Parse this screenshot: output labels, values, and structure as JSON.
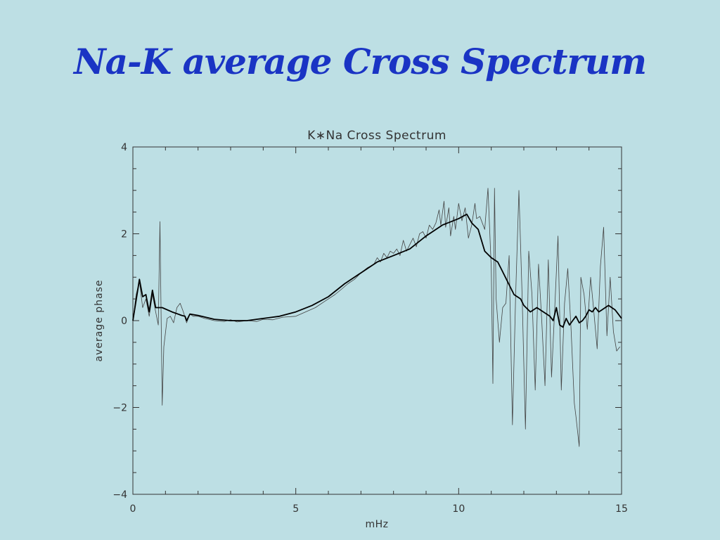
{
  "slide": {
    "title": "Na-K average Cross Spectrum"
  },
  "chart_data": {
    "type": "line",
    "title": "K∗Na Cross Spectrum",
    "xlabel": "mHz",
    "ylabel": "average phase",
    "xlim": [
      0,
      15
    ],
    "ylim": [
      -4,
      4
    ],
    "xticks": [
      "0",
      "5",
      "10",
      "15"
    ],
    "yticks": [
      "−4",
      "−2",
      "0",
      "2",
      "4"
    ],
    "grid": false,
    "legend": "none",
    "series": [
      {
        "style": "thin",
        "color": "#444444",
        "points": [
          [
            0,
            0
          ],
          [
            0.1,
            0.6
          ],
          [
            0.2,
            0.9
          ],
          [
            0.3,
            0.3
          ],
          [
            0.4,
            0.5
          ],
          [
            0.5,
            0.1
          ],
          [
            0.6,
            0.6
          ],
          [
            0.7,
            0.2
          ],
          [
            0.78,
            -0.1
          ],
          [
            0.83,
            2.28
          ],
          [
            0.9,
            -1.95
          ],
          [
            0.95,
            -0.6
          ],
          [
            1.05,
            0.05
          ],
          [
            1.15,
            0.1
          ],
          [
            1.25,
            -0.05
          ],
          [
            1.35,
            0.3
          ],
          [
            1.45,
            0.4
          ],
          [
            1.55,
            0.2
          ],
          [
            1.65,
            -0.05
          ],
          [
            1.75,
            0.15
          ],
          [
            1.85,
            0.1
          ],
          [
            2.0,
            0.1
          ],
          [
            2.2,
            0.05
          ],
          [
            2.5,
            0.0
          ],
          [
            2.8,
            -0.02
          ],
          [
            3.0,
            0.02
          ],
          [
            3.2,
            -0.03
          ],
          [
            3.5,
            0.0
          ],
          [
            3.8,
            -0.02
          ],
          [
            4.0,
            0.03
          ],
          [
            4.3,
            0.02
          ],
          [
            4.6,
            0.08
          ],
          [
            5.0,
            0.1
          ],
          [
            5.3,
            0.2
          ],
          [
            5.6,
            0.3
          ],
          [
            5.9,
            0.45
          ],
          [
            6.2,
            0.6
          ],
          [
            6.4,
            0.72
          ],
          [
            6.6,
            0.85
          ],
          [
            6.8,
            0.95
          ],
          [
            7.0,
            1.1
          ],
          [
            7.2,
            1.22
          ],
          [
            7.4,
            1.3
          ],
          [
            7.5,
            1.45
          ],
          [
            7.6,
            1.35
          ],
          [
            7.7,
            1.55
          ],
          [
            7.8,
            1.45
          ],
          [
            7.9,
            1.6
          ],
          [
            8.0,
            1.55
          ],
          [
            8.1,
            1.65
          ],
          [
            8.2,
            1.5
          ],
          [
            8.3,
            1.85
          ],
          [
            8.4,
            1.6
          ],
          [
            8.5,
            1.75
          ],
          [
            8.6,
            1.9
          ],
          [
            8.7,
            1.7
          ],
          [
            8.8,
            2.0
          ],
          [
            8.9,
            2.05
          ],
          [
            9.0,
            1.9
          ],
          [
            9.1,
            2.2
          ],
          [
            9.2,
            2.1
          ],
          [
            9.3,
            2.25
          ],
          [
            9.4,
            2.55
          ],
          [
            9.45,
            2.2
          ],
          [
            9.55,
            2.75
          ],
          [
            9.6,
            2.15
          ],
          [
            9.7,
            2.6
          ],
          [
            9.75,
            1.95
          ],
          [
            9.85,
            2.4
          ],
          [
            9.9,
            2.1
          ],
          [
            10.0,
            2.7
          ],
          [
            10.1,
            2.3
          ],
          [
            10.2,
            2.6
          ],
          [
            10.3,
            1.9
          ],
          [
            10.4,
            2.2
          ],
          [
            10.5,
            2.7
          ],
          [
            10.55,
            2.35
          ],
          [
            10.65,
            2.4
          ],
          [
            10.8,
            2.1
          ],
          [
            10.9,
            3.05
          ],
          [
            11.0,
            1.2
          ],
          [
            11.05,
            -1.45
          ],
          [
            11.1,
            3.05
          ],
          [
            11.15,
            0.5
          ],
          [
            11.25,
            -0.5
          ],
          [
            11.35,
            0.3
          ],
          [
            11.45,
            0.4
          ],
          [
            11.55,
            1.5
          ],
          [
            11.65,
            -2.4
          ],
          [
            11.75,
            0.6
          ],
          [
            11.85,
            3.0
          ],
          [
            11.95,
            0.5
          ],
          [
            12.05,
            -2.5
          ],
          [
            12.15,
            1.6
          ],
          [
            12.25,
            0.6
          ],
          [
            12.35,
            -1.6
          ],
          [
            12.45,
            1.3
          ],
          [
            12.55,
            0.0
          ],
          [
            12.65,
            -1.5
          ],
          [
            12.75,
            1.4
          ],
          [
            12.85,
            -1.3
          ],
          [
            12.95,
            0.3
          ],
          [
            13.05,
            1.95
          ],
          [
            13.15,
            -1.6
          ],
          [
            13.25,
            0.4
          ],
          [
            13.35,
            1.2
          ],
          [
            13.45,
            -0.2
          ],
          [
            13.55,
            -1.9
          ],
          [
            13.6,
            -2.2
          ],
          [
            13.7,
            -2.9
          ],
          [
            13.75,
            1.0
          ],
          [
            13.85,
            0.6
          ],
          [
            13.95,
            -0.2
          ],
          [
            14.05,
            1.0
          ],
          [
            14.15,
            0.2
          ],
          [
            14.25,
            -0.65
          ],
          [
            14.35,
            1.25
          ],
          [
            14.45,
            2.15
          ],
          [
            14.55,
            -0.35
          ],
          [
            14.65,
            1.0
          ],
          [
            14.75,
            -0.25
          ],
          [
            14.85,
            -0.7
          ],
          [
            14.95,
            -0.6
          ]
        ]
      },
      {
        "style": "bold",
        "color": "#000000",
        "points": [
          [
            0,
            0
          ],
          [
            0.2,
            0.95
          ],
          [
            0.3,
            0.55
          ],
          [
            0.4,
            0.6
          ],
          [
            0.5,
            0.2
          ],
          [
            0.6,
            0.7
          ],
          [
            0.7,
            0.3
          ],
          [
            0.9,
            0.3
          ],
          [
            1.2,
            0.2
          ],
          [
            1.5,
            0.12
          ],
          [
            1.6,
            0.1
          ],
          [
            1.65,
            0.0
          ],
          [
            1.75,
            0.15
          ],
          [
            2.0,
            0.12
          ],
          [
            2.5,
            0.03
          ],
          [
            3.0,
            0.0
          ],
          [
            3.5,
            0.0
          ],
          [
            4.0,
            0.05
          ],
          [
            4.5,
            0.1
          ],
          [
            5.0,
            0.2
          ],
          [
            5.5,
            0.35
          ],
          [
            6.0,
            0.55
          ],
          [
            6.5,
            0.85
          ],
          [
            7.0,
            1.1
          ],
          [
            7.5,
            1.35
          ],
          [
            8.0,
            1.5
          ],
          [
            8.5,
            1.65
          ],
          [
            9.0,
            1.95
          ],
          [
            9.5,
            2.2
          ],
          [
            10.0,
            2.35
          ],
          [
            10.25,
            2.45
          ],
          [
            10.4,
            2.25
          ],
          [
            10.6,
            2.1
          ],
          [
            10.8,
            1.6
          ],
          [
            11.0,
            1.45
          ],
          [
            11.2,
            1.35
          ],
          [
            11.3,
            1.2
          ],
          [
            11.5,
            0.9
          ],
          [
            11.7,
            0.6
          ],
          [
            11.9,
            0.5
          ],
          [
            12.0,
            0.35
          ],
          [
            12.2,
            0.2
          ],
          [
            12.4,
            0.3
          ],
          [
            12.6,
            0.2
          ],
          [
            12.8,
            0.1
          ],
          [
            12.9,
            0.0
          ],
          [
            13.0,
            0.3
          ],
          [
            13.1,
            -0.1
          ],
          [
            13.2,
            -0.15
          ],
          [
            13.3,
            0.05
          ],
          [
            13.4,
            -0.1
          ],
          [
            13.5,
            0.0
          ],
          [
            13.6,
            0.1
          ],
          [
            13.7,
            -0.05
          ],
          [
            13.8,
            0.0
          ],
          [
            13.9,
            0.1
          ],
          [
            14.0,
            0.25
          ],
          [
            14.1,
            0.2
          ],
          [
            14.2,
            0.3
          ],
          [
            14.3,
            0.2
          ],
          [
            14.4,
            0.25
          ],
          [
            14.5,
            0.3
          ],
          [
            14.6,
            0.35
          ],
          [
            14.7,
            0.3
          ],
          [
            14.8,
            0.25
          ],
          [
            14.9,
            0.15
          ],
          [
            15.0,
            0.05
          ]
        ]
      }
    ]
  }
}
